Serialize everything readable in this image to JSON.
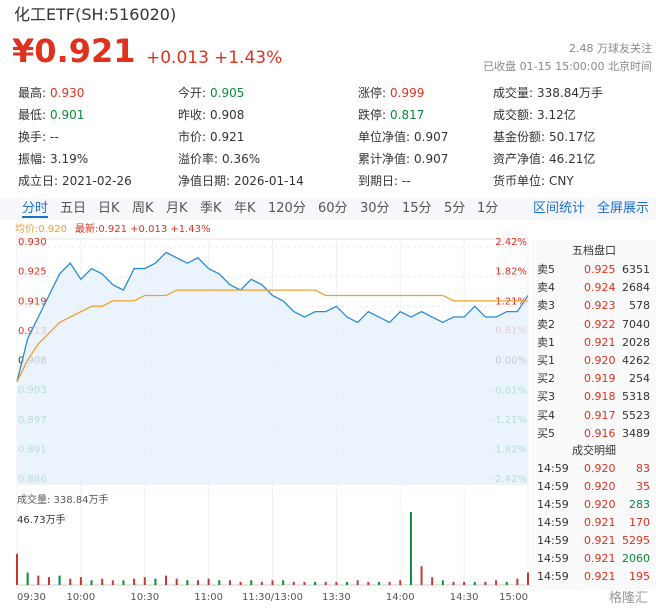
{
  "header": {
    "title": "化工ETF(SH:516020)",
    "price": "¥0.921",
    "change": "+0.013",
    "change_pct": "+1.43%",
    "followers": "2.48 万球友关注",
    "status": "已收盘 01-15 15:00:00 北京时间"
  },
  "stats": [
    [
      {
        "label": "最高:",
        "value": "0.930",
        "color": "#e0301e"
      },
      {
        "label": "今开:",
        "value": "0.905",
        "color": "#0a8a3a"
      },
      {
        "label": "涨停:",
        "value": "0.999",
        "color": "#e0301e"
      },
      {
        "label": "成交量:",
        "value": "338.84万手",
        "color": "#333333"
      }
    ],
    [
      {
        "label": "最低:",
        "value": "0.901",
        "color": "#0a8a3a"
      },
      {
        "label": "昨收:",
        "value": "0.908",
        "color": "#333333"
      },
      {
        "label": "跌停:",
        "value": "0.817",
        "color": "#0a8a3a"
      },
      {
        "label": "成交额:",
        "value": "3.12亿",
        "color": "#333333"
      }
    ],
    [
      {
        "label": "换手:",
        "value": "--",
        "color": "#333333"
      },
      {
        "label": "市价:",
        "value": "0.921",
        "color": "#333333"
      },
      {
        "label": "单位净值:",
        "value": "0.907",
        "color": "#333333"
      },
      {
        "label": "基金份额:",
        "value": "50.17亿",
        "color": "#333333"
      }
    ],
    [
      {
        "label": "振幅:",
        "value": "3.19%",
        "color": "#333333"
      },
      {
        "label": "溢价率:",
        "value": "0.36%",
        "color": "#333333"
      },
      {
        "label": "累计净值:",
        "value": "0.907",
        "color": "#333333"
      },
      {
        "label": "资产净值:",
        "value": "46.21亿",
        "color": "#333333"
      }
    ],
    [
      {
        "label": "成立日:",
        "value": "2021-02-26",
        "color": "#333333"
      },
      {
        "label": "净值日期:",
        "value": "2026-01-14",
        "color": "#333333"
      },
      {
        "label": "到期日:",
        "value": "--",
        "color": "#333333"
      },
      {
        "label": "货币单位:",
        "value": "CNY",
        "color": "#333333"
      }
    ]
  ],
  "tabs": [
    "分时",
    "五日",
    "日K",
    "周K",
    "月K",
    "季K",
    "年K",
    "120分",
    "60分",
    "30分",
    "15分",
    "5分",
    "1分"
  ],
  "right_tabs": [
    "区间统计",
    "全屏展示"
  ],
  "order_book": {
    "title": "五档盘口",
    "rows": [
      [
        "卖5",
        "0.925",
        "6351"
      ],
      [
        "卖4",
        "0.924",
        "2684"
      ],
      [
        "卖3",
        "0.923",
        "578"
      ],
      [
        "卖2",
        "0.922",
        "7040"
      ],
      [
        "卖1",
        "0.921",
        "2028"
      ],
      [
        "买1",
        "0.920",
        "4262"
      ],
      [
        "买2",
        "0.919",
        "254"
      ],
      [
        "买3",
        "0.918",
        "5318"
      ],
      [
        "买4",
        "0.917",
        "5523"
      ],
      [
        "买5",
        "0.916",
        "3489"
      ]
    ]
  },
  "trades": {
    "title": "成交明细",
    "rows": [
      [
        "14:59",
        "0.920",
        "83"
      ],
      [
        "14:59",
        "0.920",
        "35"
      ],
      [
        "14:59",
        "0.920",
        "283"
      ],
      [
        "14:59",
        "0.921",
        "170"
      ],
      [
        "14:59",
        "0.921",
        "5295"
      ],
      [
        "14:59",
        "0.921",
        "2060"
      ],
      [
        "14:59",
        "0.921",
        "195"
      ]
    ],
    "colors": [
      "#e0301e",
      "#e0301e",
      "#0a8a3a",
      "#e0301e",
      "#e0301e",
      "#0a8a3a",
      "#e0301e"
    ]
  },
  "watermark": "格隆汇",
  "chart_data": [
    {
      "type": "line",
      "legend": [
        "均价:0.920",
        "最新:0.921 +0.013 +1.43%"
      ],
      "legend_colors": [
        "#f0a030",
        "#e0301e"
      ],
      "x": [
        0,
        5,
        10,
        15,
        20,
        25,
        30,
        35,
        40,
        45,
        50,
        55,
        60,
        65,
        70,
        75,
        80,
        85,
        90,
        95,
        100,
        105,
        110,
        115,
        120,
        125,
        130,
        135,
        140,
        145,
        150,
        155,
        160,
        165,
        170,
        175,
        180,
        185,
        190,
        195,
        200,
        205,
        210,
        215,
        220,
        225,
        230,
        235,
        240
      ],
      "xlim": [
        0,
        240
      ],
      "ylim": [
        0.886,
        0.93
      ],
      "yticks": [
        {
          "value": 0.93,
          "label": "0.930"
        },
        {
          "value": 0.9245,
          "label": "0.925"
        },
        {
          "value": 0.919,
          "label": "0.919"
        },
        {
          "value": 0.9135,
          "label": "0.913"
        },
        {
          "value": 0.908,
          "label": "0.908"
        },
        {
          "value": 0.9025,
          "label": "0.903"
        },
        {
          "value": 0.897,
          "label": "0.897"
        },
        {
          "value": 0.8915,
          "label": "0.891"
        },
        {
          "value": 0.886,
          "label": "0.886"
        }
      ],
      "y2lim": [
        -2.42,
        2.42
      ],
      "y2ticks": [
        {
          "value": 2.42,
          "label": "2.42%"
        },
        {
          "value": 1.82,
          "label": "1.82%"
        },
        {
          "value": 1.21,
          "label": "1.21%"
        },
        {
          "value": 0.61,
          "label": "0.61%"
        },
        {
          "value": 0,
          "label": "0.00%"
        },
        {
          "value": -0.61,
          "label": "-0.61%"
        },
        {
          "value": -1.21,
          "label": "-1.21%"
        },
        {
          "value": -1.82,
          "label": "-1.82%"
        },
        {
          "value": -2.42,
          "label": "-2.42%"
        }
      ],
      "grid": true,
      "up_color": "#e0301e",
      "down_color": "#0a8a3a",
      "series": [
        {
          "color": "#2b8ad6",
          "values": [
            0.905,
            0.913,
            0.917,
            0.921,
            0.925,
            0.927,
            0.924,
            0.926,
            0.925,
            0.923,
            0.922,
            0.926,
            0.926,
            0.927,
            0.929,
            0.928,
            0.927,
            0.928,
            0.926,
            0.925,
            0.923,
            0.922,
            0.924,
            0.923,
            0.921,
            0.92,
            0.918,
            0.917,
            0.918,
            0.918,
            0.919,
            0.917,
            0.916,
            0.918,
            0.917,
            0.916,
            0.918,
            0.917,
            0.918,
            0.917,
            0.916,
            0.917,
            0.917,
            0.919,
            0.917,
            0.917,
            0.918,
            0.918,
            0.921
          ]
        },
        {
          "color": "#f0a030",
          "values": [
            0.905,
            0.909,
            0.912,
            0.914,
            0.916,
            0.917,
            0.918,
            0.919,
            0.919,
            0.92,
            0.92,
            0.92,
            0.921,
            0.921,
            0.921,
            0.922,
            0.922,
            0.922,
            0.922,
            0.922,
            0.922,
            0.922,
            0.922,
            0.922,
            0.922,
            0.922,
            0.922,
            0.922,
            0.922,
            0.921,
            0.921,
            0.921,
            0.921,
            0.921,
            0.921,
            0.921,
            0.921,
            0.921,
            0.921,
            0.921,
            0.921,
            0.92,
            0.92,
            0.92,
            0.92,
            0.92,
            0.92,
            0.92,
            0.92
          ]
        }
      ]
    },
    {
      "type": "bar",
      "title": "成交量: 338.84万手",
      "color": "#c0392b",
      "x": [
        0,
        5,
        10,
        15,
        20,
        25,
        30,
        35,
        40,
        45,
        50,
        55,
        60,
        65,
        70,
        75,
        80,
        85,
        90,
        95,
        100,
        105,
        110,
        115,
        120,
        125,
        130,
        135,
        140,
        145,
        150,
        155,
        160,
        165,
        170,
        175,
        180,
        185,
        190,
        195,
        200,
        205,
        210,
        215,
        220,
        225,
        230,
        235,
        240
      ],
      "xlim": [
        0,
        240
      ],
      "xticks": [
        {
          "value": 0,
          "label": "09:30"
        },
        {
          "value": 30,
          "label": "10:00"
        },
        {
          "value": 60,
          "label": "10:30"
        },
        {
          "value": 90,
          "label": "11:00"
        },
        {
          "value": 120,
          "label": "11:30/13:00"
        },
        {
          "value": 150,
          "label": "13:30"
        },
        {
          "value": 180,
          "label": "14:00"
        },
        {
          "value": 210,
          "label": "14:30"
        },
        {
          "value": 240,
          "label": "15:00"
        }
      ],
      "ylim": [
        0,
        46.73
      ],
      "yticks": [
        {
          "value": 46.73,
          "label": "46.73万手"
        }
      ],
      "values": [
        20,
        8,
        6,
        5,
        6,
        4,
        5,
        3,
        4,
        3,
        3,
        4,
        5,
        4,
        6,
        4,
        3,
        3,
        4,
        3,
        3,
        2,
        3,
        2,
        3,
        3,
        2,
        2,
        2,
        2,
        2,
        2,
        3,
        2,
        2,
        2,
        3,
        46.73,
        12,
        5,
        3,
        2,
        2,
        2,
        2,
        3,
        2,
        4,
        8
      ]
    }
  ]
}
